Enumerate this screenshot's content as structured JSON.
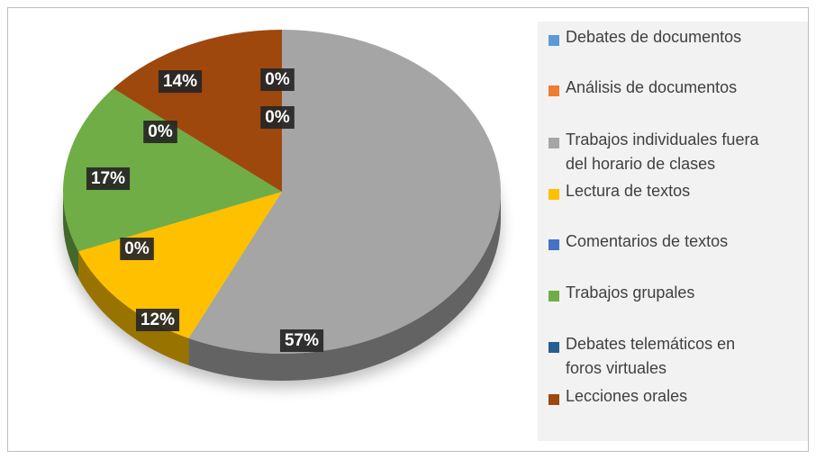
{
  "chart_data": {
    "type": "pie",
    "categories": [
      "Debates de documentos",
      "Análisis de documentos",
      "Trabajos individuales fuera del horario de clases",
      "Lectura de textos",
      "Comentarios de textos",
      "Trabajos grupales",
      "Debates telemáticos en foros virtuales",
      "Lecciones orales"
    ],
    "values": [
      0,
      0,
      57,
      12,
      0,
      17,
      0,
      14
    ],
    "value_labels": [
      "0%",
      "0%",
      "57%",
      "12%",
      "0%",
      "17%",
      "0%",
      "14%"
    ],
    "colors": [
      "#5b9bd5",
      "#ed7d31",
      "#a5a5a5",
      "#ffc000",
      "#4472c4",
      "#70ad47",
      "#255e91",
      "#9e480e"
    ],
    "legend": "right"
  }
}
